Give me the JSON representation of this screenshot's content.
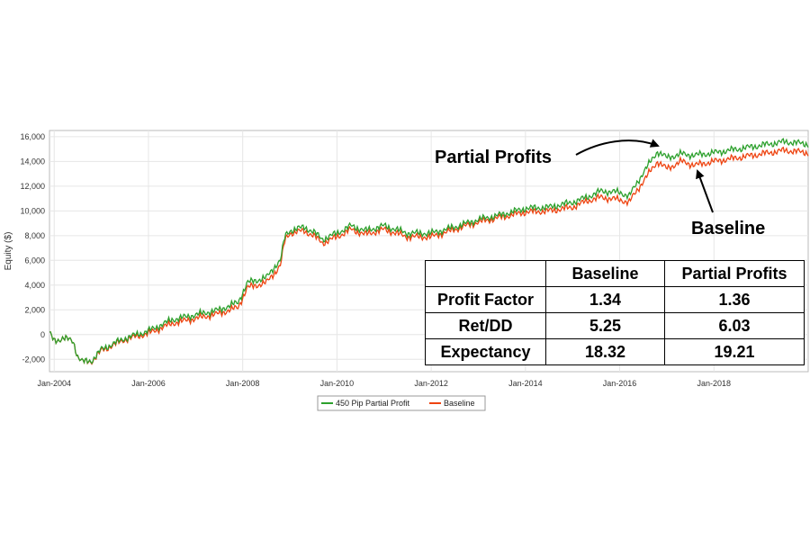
{
  "chart_data": {
    "type": "line",
    "ylabel": "Equity ($)",
    "xlabel": "",
    "ylim": [
      -3000,
      16500
    ],
    "y_ticks": [
      "16,000",
      "14,000",
      "12,000",
      "10,000",
      "8,000",
      "6,000",
      "4,000",
      "2,000",
      "0",
      "-2,000"
    ],
    "y_tick_values": [
      16000,
      14000,
      12000,
      10000,
      8000,
      6000,
      4000,
      2000,
      0,
      -2000
    ],
    "x_ticks": [
      "Jan-2004",
      "Jan-2006",
      "Jan-2008",
      "Jan-2010",
      "Jan-2012",
      "Jan-2014",
      "Jan-2016",
      "Jan-2018"
    ],
    "x_tick_years": [
      2004,
      2006,
      2008,
      2010,
      2012,
      2014,
      2016,
      2018
    ],
    "xlim_years": [
      2003.9,
      2020.0
    ],
    "grid": true,
    "legend_position": "bottom-center",
    "x_years": [
      2003.9,
      2004.0,
      2004.2,
      2004.4,
      2004.5,
      2004.6,
      2004.8,
      2005.0,
      2005.5,
      2006.0,
      2006.5,
      2007.0,
      2007.5,
      2007.9,
      2008.1,
      2008.5,
      2008.7,
      2008.8,
      2008.9,
      2009.0,
      2009.3,
      2009.5,
      2009.7,
      2010.0,
      2010.3,
      2010.6,
      2011.0,
      2011.5,
      2012.0,
      2012.5,
      2013.0,
      2013.5,
      2014.0,
      2014.5,
      2015.0,
      2015.3,
      2015.6,
      2016.0,
      2016.2,
      2016.5,
      2016.8,
      2017.0,
      2017.3,
      2017.6,
      2018.0,
      2018.5,
      2019.0,
      2019.5,
      2020.0
    ],
    "series": [
      {
        "name": "450 Pip Partial Profit",
        "color": "#2ca02c",
        "values": [
          100,
          -500,
          -300,
          -500,
          -1800,
          -2200,
          -2100,
          -1200,
          -300,
          300,
          1200,
          1600,
          2000,
          2600,
          4200,
          4600,
          5600,
          6000,
          8000,
          8400,
          8700,
          8300,
          7700,
          8200,
          8800,
          8400,
          8800,
          8200,
          8200,
          8700,
          9300,
          9700,
          10200,
          10300,
          10700,
          11100,
          11600,
          11500,
          11200,
          13100,
          14800,
          14300,
          14600,
          14500,
          14700,
          15000,
          15300,
          15600,
          15400
        ]
      },
      {
        "name": "Baseline",
        "color": "#ee4411",
        "values": [
          100,
          -500,
          -300,
          -500,
          -1800,
          -2200,
          -2150,
          -1300,
          -400,
          100,
          900,
          1300,
          1700,
          2200,
          3800,
          4200,
          5100,
          5600,
          7700,
          8200,
          8400,
          8000,
          7400,
          7900,
          8500,
          8100,
          8500,
          7900,
          7900,
          8500,
          9100,
          9500,
          9900,
          10000,
          10300,
          10800,
          11100,
          10900,
          10700,
          12400,
          14000,
          13400,
          14000,
          13700,
          14000,
          14300,
          14600,
          14900,
          14700
        ]
      }
    ]
  },
  "legend": {
    "series1_label": "450 Pip Partial Profit",
    "series2_label": "Baseline"
  },
  "annotations": {
    "partial_profits": "Partial Profits",
    "baseline": "Baseline"
  },
  "table": {
    "headers": [
      "",
      "Baseline",
      "Partial Profits"
    ],
    "rows": [
      {
        "label": "Profit Factor",
        "baseline": "1.34",
        "partial": "1.36"
      },
      {
        "label": "Ret/DD",
        "baseline": "5.25",
        "partial": "6.03"
      },
      {
        "label": "Expectancy",
        "baseline": "18.32",
        "partial": "19.21"
      }
    ]
  }
}
